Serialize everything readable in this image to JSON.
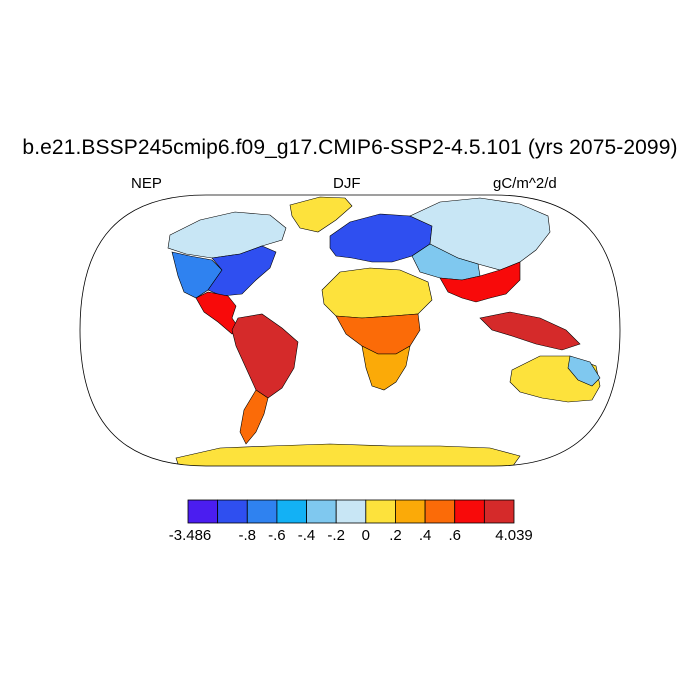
{
  "title": "b.e21.BSSP245cmip6.f09_g17.CMIP6-SSP2-4.5.101 (yrs 2075-2099)",
  "variable": "NEP",
  "season": "DJF",
  "units": "gC/m^2/d",
  "colorbar": {
    "colors": [
      "#4b1df0",
      "#2f4ff0",
      "#2f82f0",
      "#13b1f5",
      "#7fc8ef",
      "#c8e6f5",
      "#fde23c",
      "#fbaa08",
      "#fb6b08",
      "#f80a0a",
      "#d52a2a"
    ],
    "tick_labels": [
      "-3.486",
      "-.8",
      "-.6",
      "-.4",
      "-.2",
      "0",
      ".2",
      ".4",
      ".6",
      "4.039"
    ]
  },
  "regions": {
    "land_default": "#fde23c",
    "antarctica": "#fde23c",
    "greenland": "#fde23c",
    "north_america_north": "#c8e6f5",
    "north_america_east": "#2f4ff0",
    "north_america_west": "#2f82f0",
    "central_america": "#f80a0a",
    "south_america": "#d52a2a",
    "south_america_south": "#fb6b08",
    "europe": "#2f4ff0",
    "siberia": "#c8e6f5",
    "central_asia": "#7fc8ef",
    "sahara": "#fde23c",
    "tropical_africa": "#fb6b08",
    "southern_africa": "#fbaa08",
    "south_asia": "#f80a0a",
    "indonesia": "#d52a2a",
    "australia": "#fde23c",
    "australia_east": "#7fc8ef"
  }
}
